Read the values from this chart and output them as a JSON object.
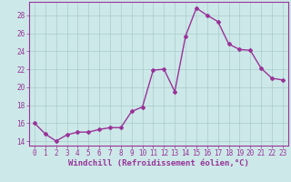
{
  "x": [
    0,
    1,
    2,
    3,
    4,
    5,
    6,
    7,
    8,
    9,
    10,
    11,
    12,
    13,
    14,
    15,
    16,
    17,
    18,
    19,
    20,
    21,
    22,
    23
  ],
  "y": [
    16.0,
    14.8,
    14.0,
    14.7,
    15.0,
    15.0,
    15.3,
    15.5,
    15.5,
    17.3,
    17.8,
    21.9,
    22.0,
    19.5,
    25.7,
    28.8,
    28.0,
    27.3,
    24.8,
    24.2,
    24.1,
    22.1,
    21.0,
    20.8
  ],
  "line_color": "#993399",
  "marker": "D",
  "marker_size": 2,
  "bg_color": "#cce8e8",
  "grid_color": "#aacccc",
  "xlabel": "Windchill (Refroidissement éolien,°C)",
  "xlim": [
    -0.5,
    23.5
  ],
  "ylim": [
    13.5,
    29.5
  ],
  "yticks": [
    14,
    16,
    18,
    20,
    22,
    24,
    26,
    28
  ],
  "xticks": [
    0,
    1,
    2,
    3,
    4,
    5,
    6,
    7,
    8,
    9,
    10,
    11,
    12,
    13,
    14,
    15,
    16,
    17,
    18,
    19,
    20,
    21,
    22,
    23
  ],
  "tick_label_size": 5.5,
  "xlabel_size": 6.5,
  "axis_color": "#993399",
  "line_width": 1.0
}
